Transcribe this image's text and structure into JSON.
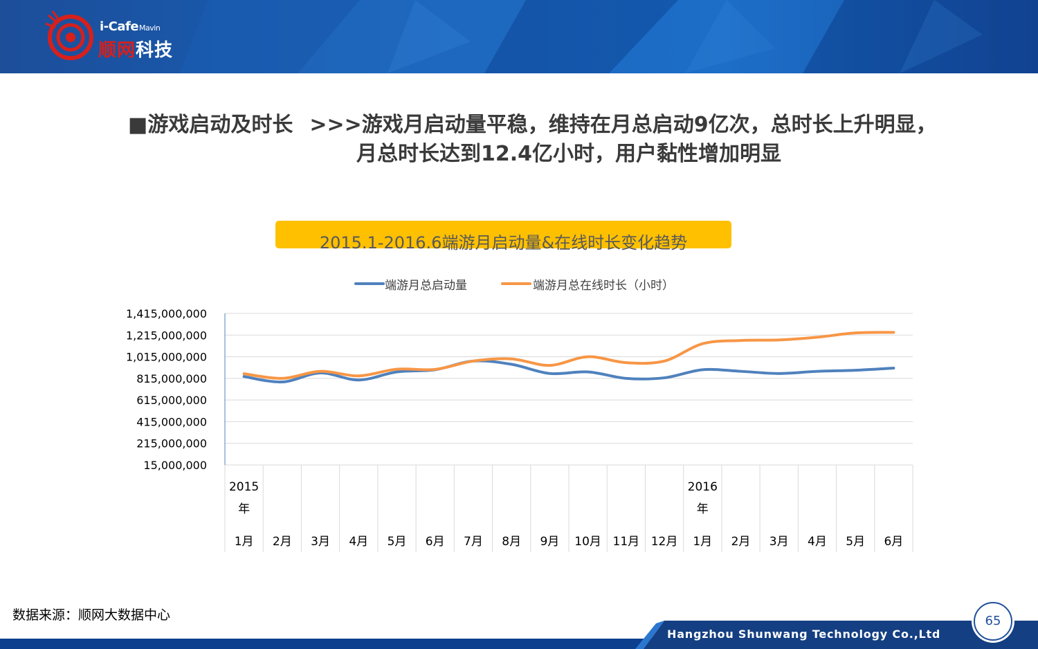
{
  "header": {
    "logo_top": "i-Cafe",
    "logo_sub": "Mavin",
    "logo_cn_a": "顺网",
    "logo_cn_b": "科技"
  },
  "headline": {
    "lead": "■游戏启动及时长",
    "line1": ">>>游戏月启动量平稳，维持在月总启动9亿次，总时长上升明显，",
    "line2": "月总时长达到12.4亿小时，用户黏性增加明显"
  },
  "chart_data": {
    "type": "line",
    "title": "2015.1-2016.6端游月启动量&在线时长变化趋势",
    "categories": [
      "2015年 1月",
      "2月",
      "3月",
      "4月",
      "5月",
      "6月",
      "7月",
      "8月",
      "9月",
      "10月",
      "11月",
      "12月",
      "2016年 1月",
      "2月",
      "3月",
      "4月",
      "5月",
      "6月"
    ],
    "x_tick_year_labels": [
      [
        "2015",
        "年"
      ],
      [],
      [],
      [],
      [],
      [],
      [],
      [],
      [],
      [],
      [],
      [],
      [
        "2016",
        "年"
      ],
      [],
      [],
      [],
      [],
      []
    ],
    "x_tick_month_labels": [
      "1月",
      "2月",
      "3月",
      "4月",
      "5月",
      "6月",
      "7月",
      "8月",
      "9月",
      "10月",
      "11月",
      "12月",
      "1月",
      "2月",
      "3月",
      "4月",
      "5月",
      "6月"
    ],
    "y_ticks": [
      "1,415,000,000",
      "1,215,000,000",
      "1,015,000,000",
      "815,000,000",
      "615,000,000",
      "415,000,000",
      "215,000,000",
      "15,000,000"
    ],
    "ylim": [
      15000000,
      1415000000
    ],
    "grid": true,
    "legend_position": "top",
    "series": [
      {
        "name": "端游月总启动量",
        "color": "#4f81bd",
        "values": [
          832000000,
          782000000,
          865000000,
          800000000,
          875000000,
          895000000,
          975000000,
          945000000,
          860000000,
          875000000,
          815000000,
          820000000,
          895000000,
          880000000,
          860000000,
          880000000,
          890000000,
          910000000
        ]
      },
      {
        "name": "端游月总在线时长（小时）",
        "color": "#f79646",
        "values": [
          858000000,
          815000000,
          880000000,
          838000000,
          900000000,
          898000000,
          975000000,
          995000000,
          935000000,
          1015000000,
          960000000,
          975000000,
          1135000000,
          1165000000,
          1170000000,
          1195000000,
          1235000000,
          1240000000
        ]
      }
    ]
  },
  "source_note": "数据来源：顺网大数据中心",
  "footer": {
    "company": "Hangzhou Shunwang Technology Co.,Ltd",
    "page_number": "65"
  },
  "colors": {
    "header_blue": "#1667c2",
    "title_box": "#ffc000",
    "series_blue": "#4f81bd",
    "series_orange": "#f79646",
    "logo_red": "#d7201b"
  }
}
